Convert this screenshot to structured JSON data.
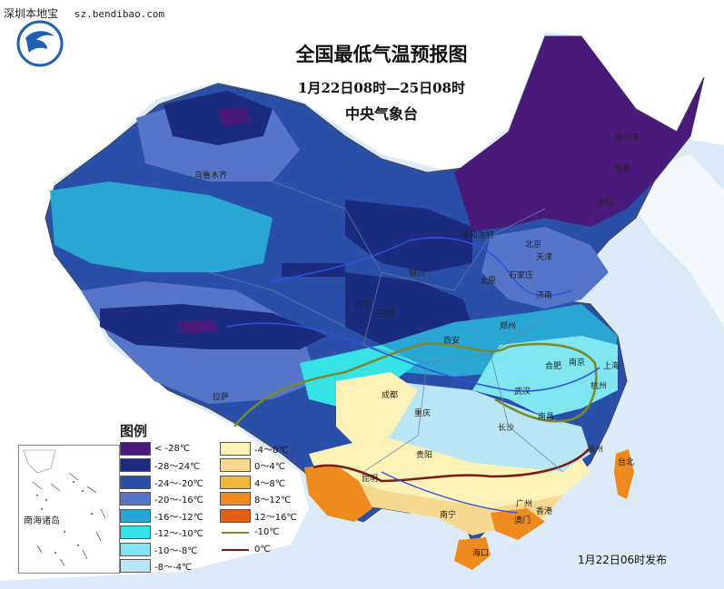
{
  "watermark": {
    "site_name": "深圳本地宝",
    "site_url": "sz.bendibao.com"
  },
  "map_title": "全国最低气温预报图",
  "period": "1月22日08时—25日08时",
  "agency": "中央气象台",
  "release_note": "1月22日06时发布",
  "inset_label": "南海诸岛",
  "legend": {
    "title": "图例",
    "items": [
      {
        "label": "< -28℃",
        "color": "#4a1a7a"
      },
      {
        "label": "-28～24℃",
        "color": "#1b2c7e"
      },
      {
        "label": "-24～-20℃",
        "color": "#2a4fa8"
      },
      {
        "label": "-20～-16℃",
        "color": "#5575c8"
      },
      {
        "label": "-16～-12℃",
        "color": "#2aa6d3"
      },
      {
        "label": "-12～-10℃",
        "color": "#35e3e7"
      },
      {
        "label": "-10～-8℃",
        "color": "#7fe6f2"
      },
      {
        "label": "-8～-4℃",
        "color": "#b8e6f4"
      },
      {
        "label": "-4～0℃",
        "color": "#fbf2b8"
      },
      {
        "label": "0～4℃",
        "color": "#f7d890"
      },
      {
        "label": "4～8℃",
        "color": "#f5b43a"
      },
      {
        "label": "8～12℃",
        "color": "#ef8a1e"
      },
      {
        "label": "12～16℃",
        "color": "#e0601a"
      },
      {
        "label": "-10℃",
        "color": "#7a8a2a"
      },
      {
        "label": "0℃",
        "color": "#7a1a10"
      }
    ]
  },
  "cities": [
    "乌鲁木齐",
    "哈尔滨",
    "长春",
    "沈阳",
    "呼和浩特",
    "北京",
    "天津",
    "银川",
    "太原",
    "石家庄",
    "济南",
    "西宁",
    "兰州",
    "郑州",
    "西安",
    "合肥",
    "南京",
    "上海",
    "杭州",
    "武汉",
    "成都",
    "拉萨",
    "重庆",
    "长沙",
    "南昌",
    "福州",
    "贵阳",
    "昆明",
    "台北",
    "南宁",
    "广州",
    "香港",
    "澳门",
    "海口"
  ]
}
